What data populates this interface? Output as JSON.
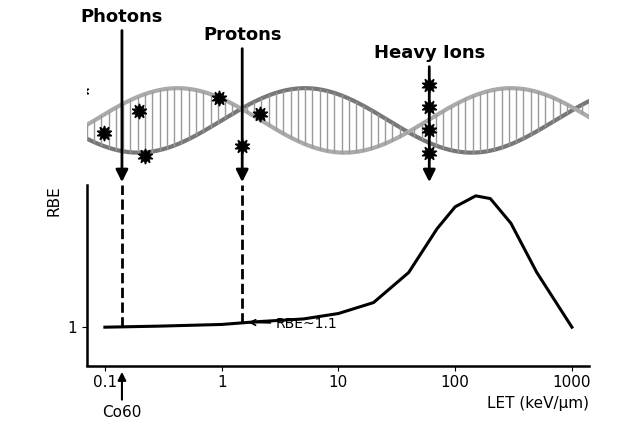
{
  "chart_data": {
    "type": "line",
    "x_label": "LET (keV/µm)",
    "y_label": "RBE",
    "log": "x",
    "xlim": [
      0.07,
      1400
    ],
    "xticks": [
      0.1,
      1,
      10,
      100,
      1000
    ],
    "ylim": [
      0.3,
      3.6
    ],
    "yticks": [
      1
    ],
    "x": [
      0.1,
      0.3,
      1,
      2,
      5,
      10,
      20,
      40,
      70,
      100,
      150,
      200,
      300,
      500,
      1000
    ],
    "values": [
      1.0,
      1.02,
      1.05,
      1.1,
      1.15,
      1.25,
      1.45,
      2.0,
      2.8,
      3.2,
      3.4,
      3.35,
      2.9,
      2.0,
      1.0
    ],
    "color": "#000000",
    "markers": [
      {
        "text": "Photons",
        "x": 0.14,
        "y": 1.0
      },
      {
        "text": "Protons",
        "x": 1.5,
        "y": 1.08
      },
      {
        "text": "Heavy Ions",
        "x": 60
      }
    ],
    "annotations": [
      {
        "text": "RBE~1.1",
        "x": 1.6,
        "y": 1.09
      }
    ],
    "axis_markers": [
      {
        "text": "Co60",
        "x": 0.14
      }
    ]
  }
}
